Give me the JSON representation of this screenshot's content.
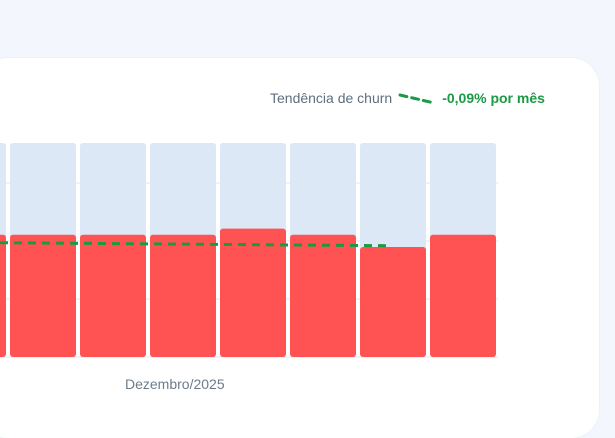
{
  "trend": {
    "label": "Tendência de churn",
    "value": "-0,09% por mês",
    "icon": "dashed-trend-line-icon",
    "color": "#1a9a43"
  },
  "chart_data": {
    "type": "bar",
    "xlabel": "Dezembro/2025",
    "ylabel": "",
    "series": [
      {
        "values": [
          2.0,
          2.0,
          2.0,
          2.0,
          2.1,
          2.0,
          1.8,
          2.0
        ],
        "color": "#ff5252"
      }
    ],
    "background_color": "#dce8f6",
    "trendline": {
      "start": 2.0,
      "end": 2.0,
      "color": "#1a9a43",
      "style": "dashed"
    },
    "ylim": [
      0,
      3.5
    ],
    "grid": true
  }
}
